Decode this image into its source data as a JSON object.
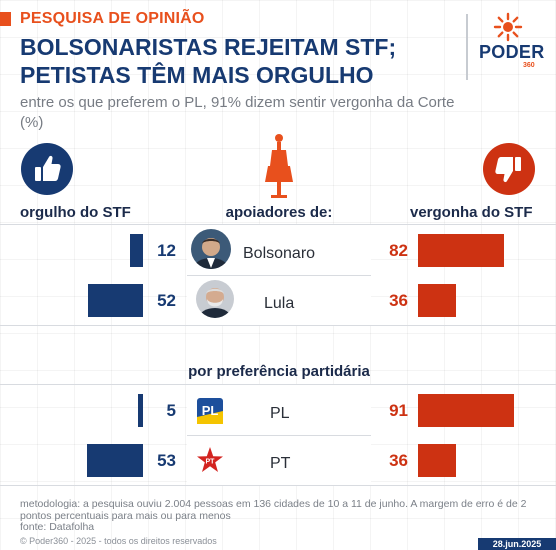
{
  "header": {
    "kicker": "PESQUISA DE OPINIÃO",
    "title_line1": "BOLSONARISTAS REJEITAM STF;",
    "title_line2": "PETISTAS TÊM MAIS ORGULHO",
    "subtitle": "entre os que preferem o PL, 91% dizem sentir vergonha da Corte (%)"
  },
  "logo": {
    "word": "PODER",
    "number": "360"
  },
  "columns": {
    "left_label": "orgulho do STF",
    "center_label": "apoiadores de:",
    "right_label": "vergonha do STF",
    "left_icon": "thumbs-up-icon",
    "right_icon": "thumbs-down-icon",
    "center_icon": "justice-statue-icon"
  },
  "section2_label": "por preferência partidária",
  "chart_data": {
    "type": "bar",
    "title": "BOLSONARISTAS REJEITAM STF; PETISTAS TÊM MAIS ORGULHO",
    "subtitle": "entre os que preferem o PL, 91% dizem sentir vergonha da Corte (%)",
    "categories": [
      "Bolsonaro",
      "Lula",
      "PL",
      "PT"
    ],
    "groups": [
      "apoiadores de:",
      "apoiadores de:",
      "por preferência partidária",
      "por preferência partidária"
    ],
    "series": [
      {
        "name": "orgulho do STF",
        "values": [
          12,
          52,
          5,
          53
        ],
        "color": "#173a72"
      },
      {
        "name": "vergonha do STF",
        "values": [
          82,
          36,
          91,
          36
        ],
        "color": "#cd3212"
      }
    ],
    "ylim": [
      0,
      100
    ]
  },
  "rows": [
    {
      "name": "Bolsonaro",
      "icon": "bolsonaro-avatar"
    },
    {
      "name": "Lula",
      "icon": "lula-avatar"
    },
    {
      "name": "PL",
      "icon": "pl-logo-icon"
    },
    {
      "name": "PT",
      "icon": "pt-star-icon"
    }
  ],
  "footer": {
    "methodology": "metodologia: a pesquisa ouviu 2.004 pessoas em 136 cidades de 10 a 11 de junho. A margem de erro é de 2 pontos percentuais para mais ou para menos",
    "source": "fonte: Datafolha",
    "copyright": "© Poder360 - 2025 - todos os direitos reservados",
    "date": "28.jun.2025"
  },
  "colors": {
    "accent": "#e8501d",
    "navy": "#173a72",
    "red": "#cd3212"
  }
}
